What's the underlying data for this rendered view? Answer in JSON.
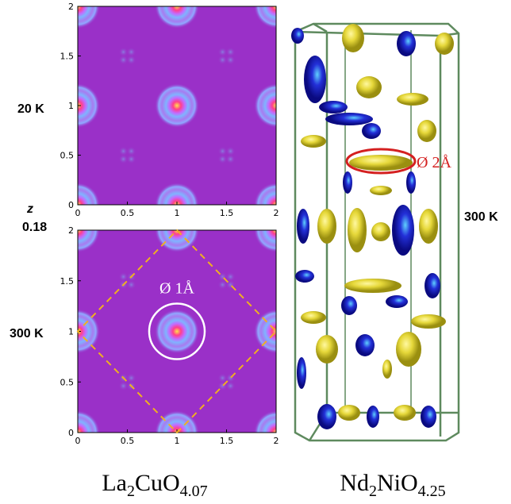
{
  "left_labels": {
    "top_temp": "20 K",
    "z_label": "z",
    "z_value": "0.18",
    "bottom_temp": "300 K"
  },
  "panels": [
    {
      "xticks": [
        0,
        0.5,
        1,
        1.5,
        2
      ],
      "yticks": [
        0,
        0.5,
        1,
        1.5,
        2
      ]
    },
    {
      "xticks": [
        0,
        0.5,
        1,
        1.5,
        2
      ],
      "yticks": [
        0,
        0.5,
        1,
        1.5,
        2
      ],
      "annotation": "Ø 1Å"
    }
  ],
  "right": {
    "annotation": "Ø 2Å",
    "temp": "300 K"
  },
  "captions": [
    {
      "parts": [
        "La",
        "2",
        "CuO",
        "4.07"
      ]
    },
    {
      "parts": [
        "Nd",
        "2",
        "NiO",
        "4.25"
      ]
    }
  ]
}
